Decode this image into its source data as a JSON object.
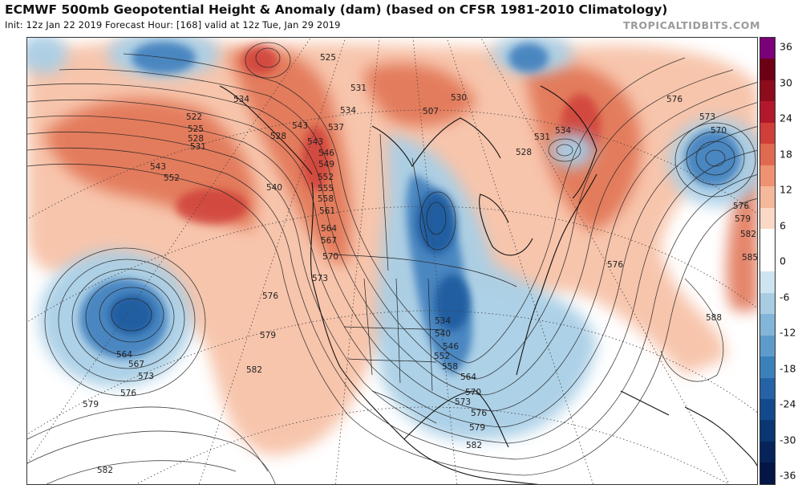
{
  "header": {
    "title": "ECMWF 500mb Geopotential Height & Anomaly (dam) (based on CFSR 1981-2010 Climatology)",
    "subtitle": "Init: 12z Jan 22 2019   Forecast Hour: [168]   valid at 12z Tue, Jan 29 2019",
    "brand": "TROPICALTIDBITS.COM"
  },
  "colorbar": {
    "labels": [
      "36",
      "30",
      "24",
      "18",
      "12",
      "6",
      "0",
      "-6",
      "-12",
      "-18",
      "-24",
      "-30",
      "-36"
    ],
    "colors": [
      "#7a0078",
      "#6e0016",
      "#8c0c1c",
      "#b2182b",
      "#cf3e38",
      "#e06a50",
      "#ee9272",
      "#f6b89a",
      "#fbd9c6",
      "#ffffff",
      "#ffffff",
      "#cde4f1",
      "#a8cde3",
      "#82b5d7",
      "#5d9cca",
      "#3c80ba",
      "#2563a6",
      "#134a8c",
      "#0a3672",
      "#06245a",
      "#041645"
    ],
    "text_color": "#111111"
  },
  "anomalies": {
    "positive_color": "#e07050",
    "positive_light": "#f7c2a8",
    "negative_color": "#3f7fbd",
    "negative_light": "#a9cfe6"
  },
  "contour_labels": [
    {
      "text": "525"
    },
    {
      "text": "531"
    },
    {
      "text": "534"
    },
    {
      "text": "537"
    },
    {
      "text": "530"
    },
    {
      "text": "507"
    },
    {
      "text": "522"
    },
    {
      "text": "525"
    },
    {
      "text": "528"
    },
    {
      "text": "531"
    },
    {
      "text": "534"
    },
    {
      "text": "528"
    },
    {
      "text": "543"
    },
    {
      "text": "552"
    },
    {
      "text": "543"
    },
    {
      "text": "546"
    },
    {
      "text": "549"
    },
    {
      "text": "552"
    },
    {
      "text": "555"
    },
    {
      "text": "558"
    },
    {
      "text": "561"
    },
    {
      "text": "564"
    },
    {
      "text": "567"
    },
    {
      "text": "570"
    },
    {
      "text": "540"
    },
    {
      "text": "573"
    },
    {
      "text": "576"
    },
    {
      "text": "579"
    },
    {
      "text": "582"
    },
    {
      "text": "564"
    },
    {
      "text": "567"
    },
    {
      "text": "573"
    },
    {
      "text": "576"
    },
    {
      "text": "579"
    },
    {
      "text": "582"
    },
    {
      "text": "534"
    },
    {
      "text": "540"
    },
    {
      "text": "546"
    },
    {
      "text": "552"
    },
    {
      "text": "558"
    },
    {
      "text": "564"
    },
    {
      "text": "570"
    },
    {
      "text": "573"
    },
    {
      "text": "576"
    },
    {
      "text": "579"
    },
    {
      "text": "582"
    },
    {
      "text": "531"
    },
    {
      "text": "534"
    },
    {
      "text": "528"
    },
    {
      "text": "576"
    },
    {
      "text": "573"
    },
    {
      "text": "570"
    },
    {
      "text": "576"
    },
    {
      "text": "579"
    },
    {
      "text": "582"
    },
    {
      "text": "585"
    },
    {
      "text": "576"
    },
    {
      "text": "588"
    },
    {
      "text": "543"
    }
  ]
}
